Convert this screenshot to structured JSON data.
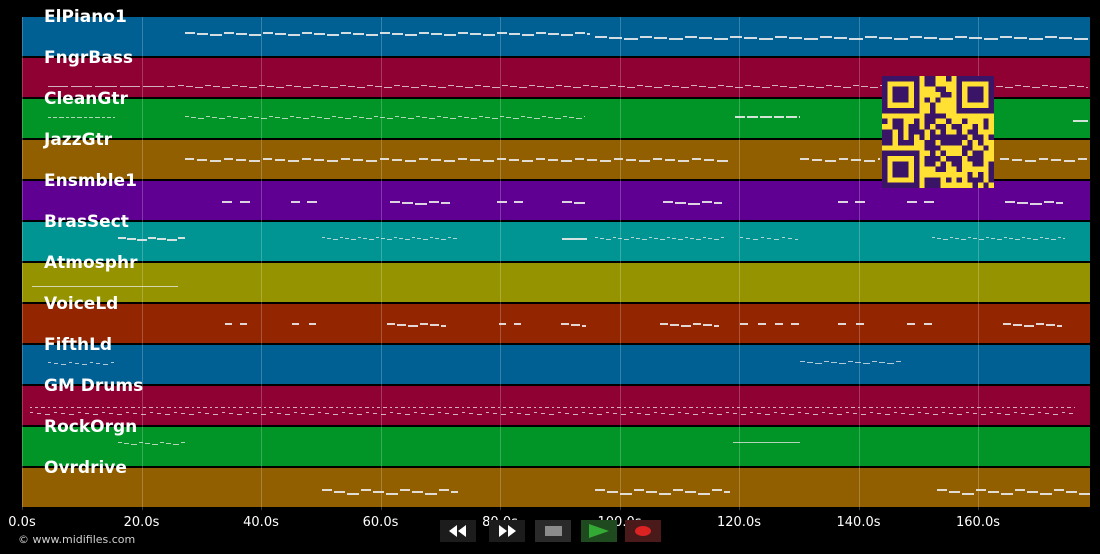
{
  "tracks": [
    {
      "name": "ElPiano1",
      "color": "#005f93"
    },
    {
      "name": "FngrBass",
      "color": "#8f0033"
    },
    {
      "name": "CleanGtr",
      "color": "#009526"
    },
    {
      "name": "JazzGtr",
      "color": "#915f00"
    },
    {
      "name": "Ensmble1",
      "color": "#5f0093"
    },
    {
      "name": "BrasSect",
      "color": "#009493"
    },
    {
      "name": "Atmosphr",
      "color": "#959400"
    },
    {
      "name": "VoiceLd",
      "color": "#932600"
    },
    {
      "name": "FifthLd",
      "color": "#005f93"
    },
    {
      "name": "GM Drums",
      "color": "#8f0033"
    },
    {
      "name": "RockOrgn",
      "color": "#009526"
    },
    {
      "name": "Ovrdrive",
      "color": "#915f00"
    }
  ],
  "timeline": {
    "ticks": [
      "0.0s",
      "20.0s",
      "40.0s",
      "60.0s",
      "80.0s",
      "100.0s",
      "120.0s",
      "140.0s",
      "160.0s"
    ]
  },
  "footer": {
    "copyright": "© www.midifiles.com"
  },
  "transport": {
    "rewind_icon": "rewind-icon",
    "fast_forward_icon": "fast-forward-icon",
    "stop_icon": "stop-icon",
    "play_icon": "play-icon",
    "record_icon": "record-icon",
    "play_color": "#33aa33",
    "record_color": "#dd2222"
  },
  "qr_code": {
    "icon": "qr-code-icon",
    "color": "#ffe033"
  }
}
